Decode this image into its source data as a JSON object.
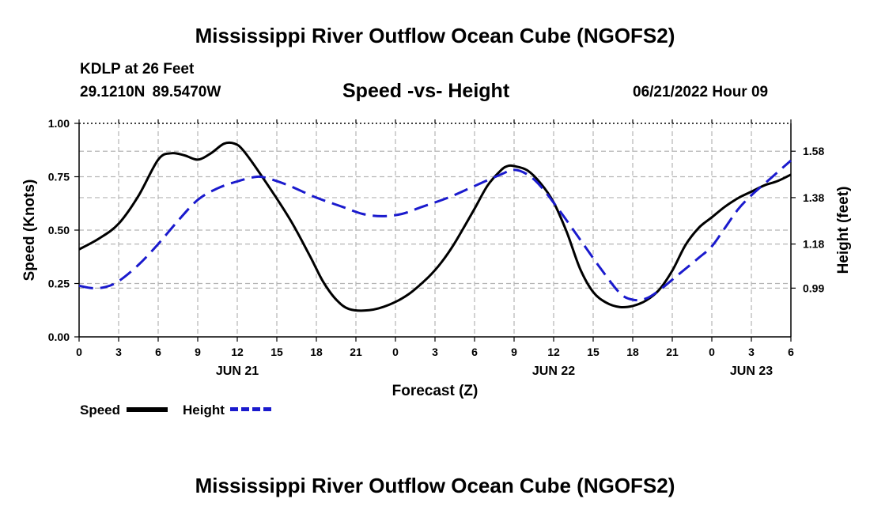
{
  "header": {
    "title": "Mississippi River Outflow Ocean Cube (NGOFS2)",
    "station": "KDLP at 26 Feet",
    "coordinates": "29.1210N 89.5470W",
    "subtitle": "Speed -vs- Height",
    "date": "06/21/2022 Hour 09"
  },
  "footer": {
    "title": "Mississippi River Outflow Ocean Cube (NGOFS2)"
  },
  "legend": {
    "speed_label": "Speed",
    "height_label": "Height"
  },
  "colors": {
    "speed": "#000000",
    "height": "#1a1acd",
    "grid": "#b4b4b4"
  },
  "chart_data": {
    "type": "line",
    "title": "Speed -vs- Height",
    "xlabel": "Forecast (Z)",
    "ylabel": "Speed (Knots)",
    "y2label": "Height (feet)",
    "x_unit": "hours since 06/21 00Z",
    "xlim": [
      0,
      54
    ],
    "ylim": [
      0,
      1
    ],
    "y2lim": [
      0.78,
      1.7
    ],
    "x_ticks": [
      0,
      3,
      6,
      9,
      12,
      15,
      18,
      21,
      24,
      27,
      30,
      33,
      36,
      39,
      42,
      45,
      48,
      51,
      54
    ],
    "x_tick_labels": [
      "0",
      "3",
      "6",
      "9",
      "12",
      "15",
      "18",
      "21",
      "0",
      "3",
      "6",
      "9",
      "12",
      "15",
      "18",
      "21",
      "0",
      "3",
      "6"
    ],
    "date_labels": [
      {
        "x": 12,
        "label": "JUN 21"
      },
      {
        "x": 36,
        "label": "JUN 22"
      },
      {
        "x": 51,
        "label": "JUN 23"
      }
    ],
    "y_ticks": [
      0,
      0.25,
      0.5,
      0.75,
      1.0
    ],
    "y_tick_labels": [
      "0.00",
      "0.25",
      "0.50",
      "0.75",
      "1.00"
    ],
    "y2_ticks": [
      0.99,
      1.18,
      1.38,
      1.58
    ],
    "y2_tick_labels": [
      "0.99",
      "1.18",
      "1.38",
      "1.58"
    ],
    "series": [
      {
        "name": "Speed",
        "axis": "left",
        "style": "solid",
        "points": [
          [
            0,
            0.41
          ],
          [
            1.5,
            0.46
          ],
          [
            3,
            0.53
          ],
          [
            4.5,
            0.66
          ],
          [
            6,
            0.83
          ],
          [
            7,
            0.86
          ],
          [
            8,
            0.85
          ],
          [
            9,
            0.83
          ],
          [
            10,
            0.86
          ],
          [
            11,
            0.905
          ],
          [
            11.8,
            0.905
          ],
          [
            12.5,
            0.87
          ],
          [
            14,
            0.74
          ],
          [
            16,
            0.55
          ],
          [
            17.5,
            0.38
          ],
          [
            18.5,
            0.26
          ],
          [
            19.5,
            0.175
          ],
          [
            20.5,
            0.13
          ],
          [
            22,
            0.125
          ],
          [
            23.5,
            0.15
          ],
          [
            25,
            0.2
          ],
          [
            26.5,
            0.28
          ],
          [
            27.5,
            0.35
          ],
          [
            28.5,
            0.44
          ],
          [
            30,
            0.6
          ],
          [
            31,
            0.71
          ],
          [
            32,
            0.78
          ],
          [
            32.5,
            0.8
          ],
          [
            33,
            0.8
          ],
          [
            34,
            0.78
          ],
          [
            35,
            0.72
          ],
          [
            36,
            0.63
          ],
          [
            37,
            0.49
          ],
          [
            38,
            0.32
          ],
          [
            39,
            0.21
          ],
          [
            40,
            0.16
          ],
          [
            41,
            0.14
          ],
          [
            42,
            0.145
          ],
          [
            43,
            0.17
          ],
          [
            44,
            0.22
          ],
          [
            45,
            0.31
          ],
          [
            46,
            0.43
          ],
          [
            47,
            0.51
          ],
          [
            48,
            0.56
          ],
          [
            49,
            0.61
          ],
          [
            50,
            0.65
          ],
          [
            51,
            0.68
          ],
          [
            52,
            0.71
          ],
          [
            53,
            0.73
          ],
          [
            54,
            0.76
          ]
        ]
      },
      {
        "name": "Height",
        "axis": "right",
        "style": "dashed",
        "points": [
          [
            0,
            1.0
          ],
          [
            1,
            0.99
          ],
          [
            2,
            0.995
          ],
          [
            3,
            1.02
          ],
          [
            4.5,
            1.09
          ],
          [
            6,
            1.18
          ],
          [
            7.5,
            1.28
          ],
          [
            9,
            1.37
          ],
          [
            10.5,
            1.42
          ],
          [
            12,
            1.45
          ],
          [
            13.5,
            1.47
          ],
          [
            14.5,
            1.46
          ],
          [
            16,
            1.43
          ],
          [
            18,
            1.38
          ],
          [
            20,
            1.34
          ],
          [
            21.5,
            1.31
          ],
          [
            23,
            1.3
          ],
          [
            24.5,
            1.31
          ],
          [
            26,
            1.34
          ],
          [
            28,
            1.38
          ],
          [
            30,
            1.43
          ],
          [
            32,
            1.48
          ],
          [
            33,
            1.5
          ],
          [
            34,
            1.48
          ],
          [
            35,
            1.43
          ],
          [
            36.5,
            1.32
          ],
          [
            38,
            1.2
          ],
          [
            39.5,
            1.08
          ],
          [
            41,
            0.97
          ],
          [
            42,
            0.94
          ],
          [
            43,
            0.945
          ],
          [
            44,
            0.98
          ],
          [
            45.5,
            1.05
          ],
          [
            47,
            1.12
          ],
          [
            48,
            1.17
          ],
          [
            49,
            1.25
          ],
          [
            50,
            1.33
          ],
          [
            51,
            1.39
          ],
          [
            52,
            1.44
          ],
          [
            53,
            1.49
          ],
          [
            54,
            1.54
          ]
        ]
      }
    ]
  }
}
